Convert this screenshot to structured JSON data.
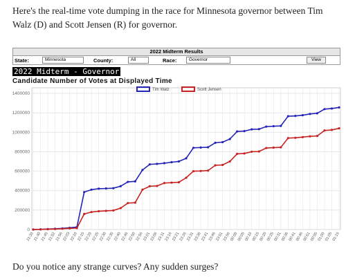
{
  "paragraphs": [
    "Here's the real-time vote dumping in the race for Minnesota governor between Tim Walz (D) and Scott Jensen (R) for governor.",
    "Do you notice any strange curves? Any sudden surges?"
  ],
  "panel": {
    "header": "2022 Midterm Results",
    "state_label": "State:",
    "state_value": "Minnesota",
    "county_label": "County:",
    "county_value": "All",
    "race_label": "Race:",
    "race_value": "Governor",
    "button": "View",
    "banner": "2022 Midterm - Governor"
  },
  "chart_data": {
    "type": "line",
    "title": "Candidate Number of Votes at Displayed Time",
    "categories": [
      "21:33",
      "21:40",
      "21:45",
      "21:52",
      "21:56",
      "22:03",
      "22:10",
      "22:15",
      "22:20",
      "22:25",
      "22:30",
      "22:35",
      "22:40",
      "22:46",
      "22:50",
      "22:56",
      "23:01",
      "23:06",
      "23:11",
      "23:16",
      "23:21",
      "23:26",
      "23:31",
      "23:36",
      "23:41",
      "23:46",
      "23:51",
      "23:56",
      "00:00",
      "00:05",
      "00:10",
      "00:15",
      "00:20",
      "00:25",
      "00:31",
      "00:36",
      "00:41",
      "00:46",
      "00:51",
      "00:55",
      "01:00",
      "01:05",
      "01:15"
    ],
    "series": [
      {
        "name": "Tim Walz",
        "color": "#2323b8",
        "values": [
          0,
          2000,
          5000,
          8000,
          12000,
          18000,
          25000,
          385000,
          410000,
          420000,
          422000,
          425000,
          445000,
          490000,
          495000,
          612000,
          670000,
          675000,
          682000,
          692000,
          700000,
          732000,
          840000,
          843000,
          846000,
          892000,
          898000,
          930000,
          1008000,
          1012000,
          1030000,
          1032000,
          1058000,
          1062000,
          1065000,
          1165000,
          1168000,
          1175000,
          1188000,
          1195000,
          1238000,
          1244000,
          1255000
        ]
      },
      {
        "name": "Scott Jensen",
        "color": "#c82222",
        "values": [
          0,
          1000,
          3000,
          5000,
          8000,
          12000,
          15000,
          160000,
          180000,
          188000,
          192000,
          196000,
          220000,
          272000,
          276000,
          410000,
          445000,
          448000,
          478000,
          482000,
          486000,
          532000,
          600000,
          602000,
          606000,
          660000,
          664000,
          700000,
          778000,
          782000,
          800000,
          802000,
          838000,
          842000,
          845000,
          940000,
          943000,
          950000,
          958000,
          962000,
          1018000,
          1024000,
          1040000
        ]
      }
    ],
    "ylim": [
      0,
      1400000
    ],
    "yticks": [
      0,
      200000,
      400000,
      600000,
      800000,
      1000000,
      1200000,
      1400000
    ],
    "grid": true
  }
}
